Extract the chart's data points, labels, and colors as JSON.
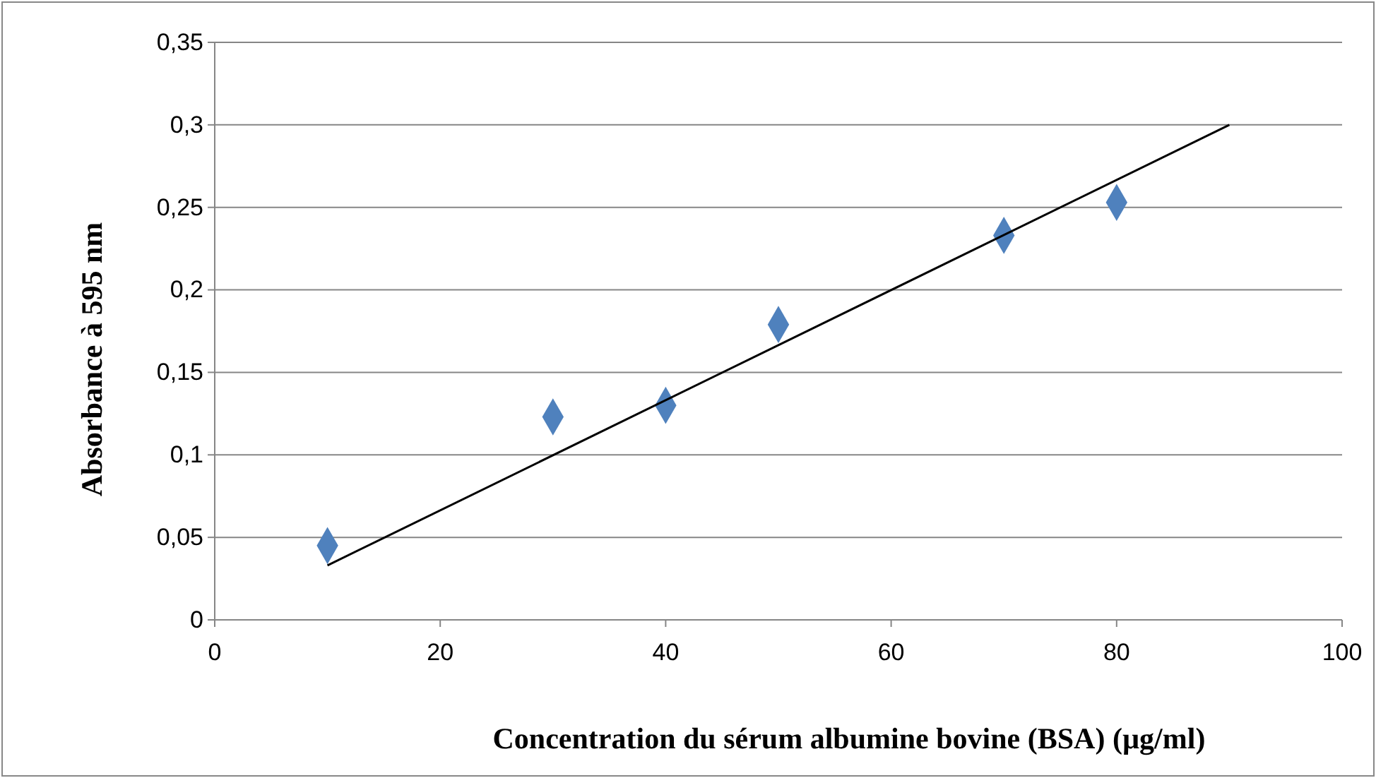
{
  "chart_data": {
    "type": "scatter",
    "xlabel": "Concentration du sérum albumine bovine (BSA) (µg/ml)",
    "ylabel": "Absorbance à 595 nm",
    "series": [
      {
        "color": "#4f81bd",
        "marker": "diamond",
        "x": [
          10,
          30,
          40,
          50,
          70,
          80
        ],
        "values": [
          0.045,
          0.123,
          0.13,
          0.179,
          0.233,
          0.253
        ]
      },
      {
        "type": "line",
        "color": "#000000",
        "marker": "none",
        "line_style": "solid",
        "x": [
          10,
          90
        ],
        "values": [
          0.033,
          0.3
        ]
      }
    ],
    "xlim": [
      0,
      100
    ],
    "xticks": [
      0,
      20,
      40,
      60,
      80,
      100
    ],
    "ylim": [
      0,
      0.35
    ],
    "yticks": [
      0,
      {
        "value": 0.05,
        "label": "0,05"
      },
      {
        "value": 0.1,
        "label": "0,1"
      },
      {
        "value": 0.15,
        "label": "0,15"
      },
      {
        "value": 0.2,
        "label": "0,2"
      },
      {
        "value": 0.25,
        "label": "0,25"
      },
      {
        "value": 0.3,
        "label": "0,3"
      },
      {
        "value": 0.35,
        "label": "0,35"
      }
    ],
    "grid": "y"
  }
}
